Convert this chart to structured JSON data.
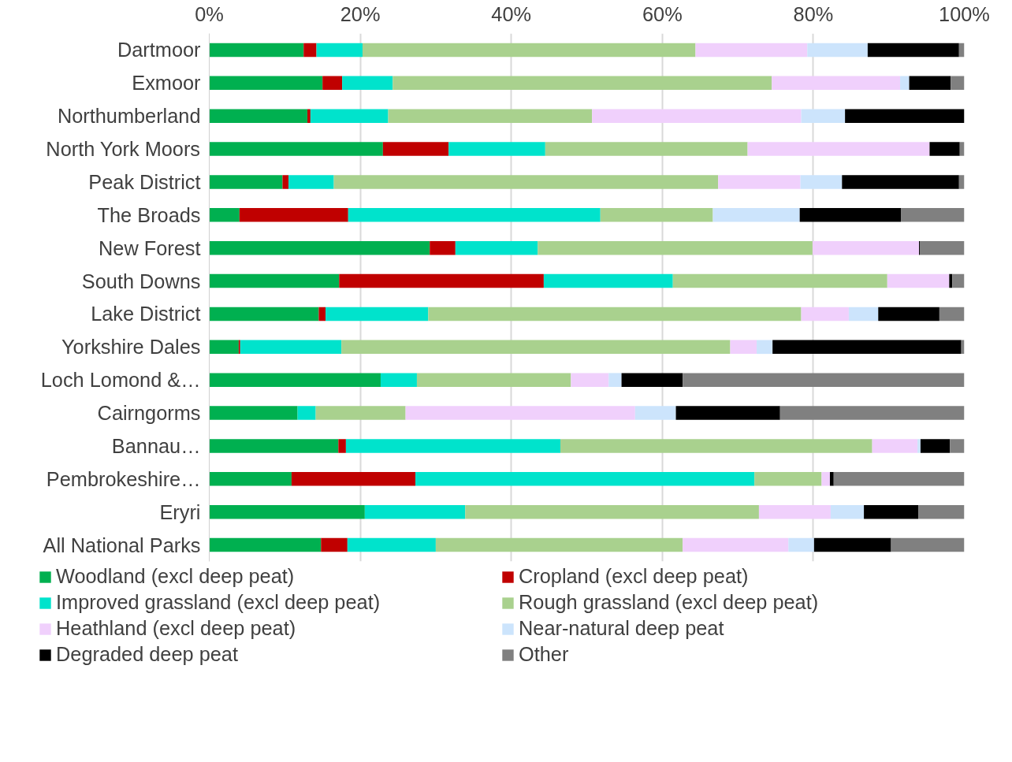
{
  "chart_data": {
    "type": "bar",
    "orientation": "horizontal",
    "stacked": true,
    "categories": [
      "Dartmoor",
      "Exmoor",
      "Northumberland",
      "North York Moors",
      "Peak District",
      "The Broads",
      "New Forest",
      "South Downs",
      "Lake District",
      "Yorkshire Dales",
      "Loch Lomond &…",
      "Cairngorms",
      "Bannau…",
      "Pembrokeshire…",
      "Eryri",
      "All National Parks"
    ],
    "series": [
      {
        "name": "Woodland (excl deep peat)",
        "color": "#00b050",
        "values": [
          12.5,
          15.0,
          13.0,
          23.0,
          9.7,
          4.0,
          29.2,
          17.2,
          14.5,
          3.9,
          22.7,
          11.7,
          17.1,
          10.9,
          20.6,
          14.8
        ]
      },
      {
        "name": "Cropland (excl deep peat)",
        "color": "#c00000",
        "values": [
          1.7,
          2.6,
          0.4,
          8.7,
          0.8,
          14.4,
          3.4,
          27.1,
          0.9,
          0.2,
          0,
          0,
          1.0,
          16.4,
          0,
          3.5
        ]
      },
      {
        "name": "Improved grassland (excl deep peat)",
        "color": "#00e3cc",
        "values": [
          6.1,
          6.7,
          10.3,
          12.8,
          6.0,
          33.4,
          10.9,
          17.1,
          13.6,
          13.4,
          4.8,
          2.4,
          28.4,
          44.9,
          13.3,
          11.7
        ]
      },
      {
        "name": "Rough grassland (excl deep peat)",
        "color": "#a9d18e",
        "values": [
          44.1,
          50.2,
          27.0,
          26.8,
          50.9,
          14.9,
          36.4,
          28.4,
          49.4,
          51.5,
          20.4,
          11.9,
          41.3,
          8.9,
          38.9,
          32.7
        ]
      },
      {
        "name": "Heathland (excl deep peat)",
        "color": "#f0d0fc",
        "values": [
          14.8,
          17.0,
          27.7,
          24.1,
          10.9,
          0,
          14.1,
          8.2,
          6.3,
          3.5,
          5.0,
          30.4,
          6.0,
          1.1,
          9.5,
          14.0
        ]
      },
      {
        "name": "Near-natural deep peat",
        "color": "#cce4fc",
        "values": [
          8.0,
          1.2,
          5.8,
          0,
          5.5,
          11.5,
          0,
          0,
          3.9,
          2.1,
          1.7,
          5.4,
          0.4,
          0,
          4.4,
          3.4
        ]
      },
      {
        "name": "Degraded deep peat",
        "color": "#000000",
        "values": [
          12.1,
          5.5,
          15.8,
          4.0,
          15.5,
          13.4,
          0.1,
          0.4,
          8.1,
          25.0,
          8.1,
          13.8,
          3.9,
          0.5,
          7.2,
          10.2
        ]
      },
      {
        "name": "Other",
        "color": "#808080",
        "values": [
          0.7,
          1.8,
          0,
          0.6,
          0.7,
          8.4,
          5.9,
          1.6,
          3.3,
          0.4,
          37.3,
          24.4,
          2.0,
          17.3,
          6.1,
          9.7
        ]
      }
    ],
    "xlim": [
      0,
      100
    ],
    "xticks": [
      {
        "value": 0,
        "label": "0%"
      },
      {
        "value": 20,
        "label": "20%"
      },
      {
        "value": 40,
        "label": "40%"
      },
      {
        "value": 60,
        "label": "60%"
      },
      {
        "value": 80,
        "label": "80%"
      },
      {
        "value": 100,
        "label": "100%"
      }
    ],
    "grid": "x",
    "legend": "bottom"
  }
}
